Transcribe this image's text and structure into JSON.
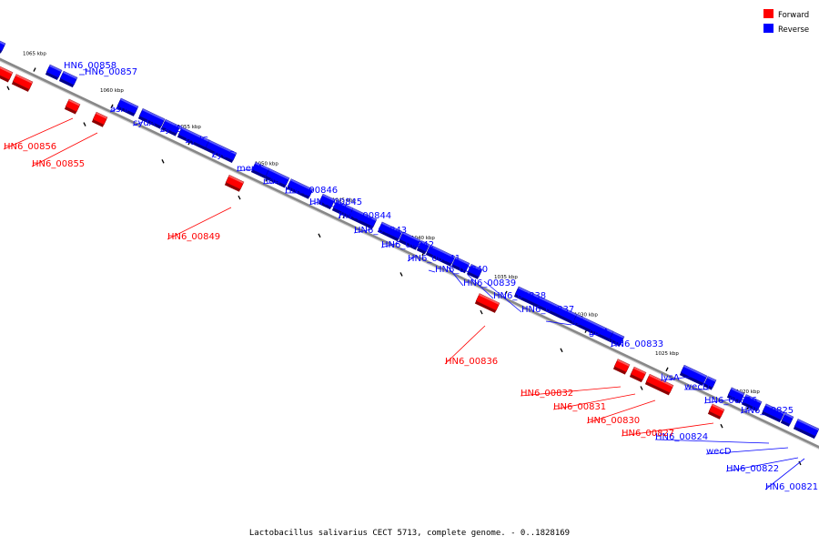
{
  "caption": "Lactobacillus salivarius CECT 5713, complete genome. - 0..1828169",
  "legend": [
    {
      "label": "Forward",
      "color": "#ff0000"
    },
    {
      "label": "Reverse",
      "color": "#0000ff"
    }
  ],
  "colors": {
    "forward": "#ff0000",
    "reverse": "#0000ff",
    "backbone": "#888888"
  },
  "ticks": [
    "1065 kbp",
    "1060 kbp",
    "1055 kbp",
    "1050 kbp",
    "1045 kbp",
    "1040 kbp",
    "1035 kbp",
    "1030 kbp",
    "1025 kbp",
    "1020 kbp"
  ],
  "reverse_genes": [
    "HN6_00858",
    "HN6_00857",
    "asnA",
    "cydA",
    "cydB",
    "cydC",
    "cydC",
    "menA",
    "ndh",
    "HN6_00846",
    "HN6_00845",
    "HN6_00844",
    "HN6_00843",
    "HN6_00842",
    "HN6_00841",
    "HN6_00840",
    "HN6_00839",
    "HN6_00838",
    "HN6_00837",
    "ssl",
    "galA",
    "HN6_00833",
    "lysA",
    "wecD",
    "HN6_00826",
    "HN6_00825",
    "HN6_00824",
    "wecD",
    "HN6_00822",
    "HN6_00821"
  ],
  "forward_genes": [
    "HN6_00856",
    "HN6_00855",
    "HN6_00849",
    "HN6_00836",
    "HN6_00832",
    "HN6_00831",
    "HN6_00830",
    "HN6_00827"
  ]
}
